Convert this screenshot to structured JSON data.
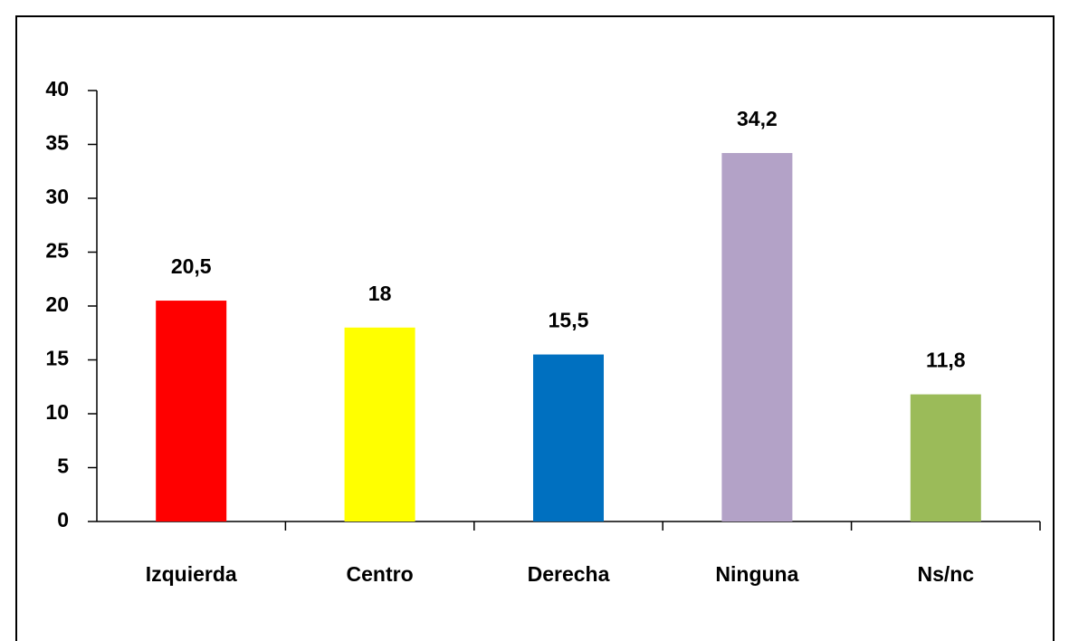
{
  "chart_data": {
    "type": "bar",
    "categories": [
      "Izquierda",
      "Centro",
      "Derecha",
      "Ninguna",
      "Ns/nc"
    ],
    "values": [
      20.5,
      18,
      15.5,
      34.2,
      11.8
    ],
    "value_labels": [
      "20,5",
      "18",
      "15,5",
      "34,2",
      "11,8"
    ],
    "colors": [
      "#ff0000",
      "#ffff00",
      "#0070c0",
      "#b3a2c7",
      "#9bbb59"
    ],
    "ylim": [
      0,
      40
    ],
    "yticks": [
      0,
      5,
      10,
      15,
      20,
      25,
      30,
      35,
      40
    ],
    "grid": false
  }
}
